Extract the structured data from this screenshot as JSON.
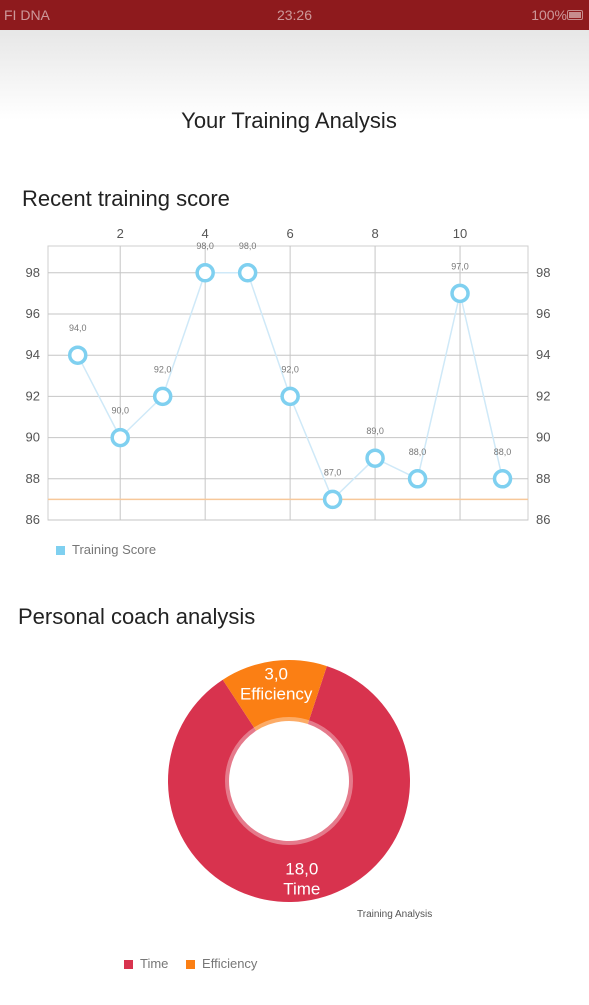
{
  "status_bar": {
    "carrier": "FI DNA",
    "time": "23:26",
    "battery": "100%"
  },
  "page_title": "Your Training Analysis",
  "line_section": {
    "title": "Recent training score"
  },
  "donut_section": {
    "title": "Personal coach analysis",
    "description": "Training Analysis"
  },
  "colors": {
    "status_bar": "#8e1a1d",
    "line": "#cfe9f8",
    "marker": "#7fd0f0",
    "limit_line": "#f7c89a",
    "time": "#d8334e",
    "efficiency": "#fb7f14"
  },
  "chart_data": [
    {
      "type": "line",
      "x": [
        1,
        2,
        3,
        4,
        5,
        6,
        7,
        8,
        9,
        10,
        11
      ],
      "x_ticks": [
        2,
        4,
        6,
        8,
        10
      ],
      "y_ticks": [
        86,
        88,
        90,
        92,
        94,
        96,
        98
      ],
      "ylim": [
        86,
        99.3
      ],
      "series": [
        {
          "name": "Training Score",
          "values": [
            94,
            90,
            92,
            98,
            98,
            92,
            87,
            89,
            88,
            97,
            88
          ],
          "labels": [
            "94,0",
            "90,0",
            "92,0",
            "98,0",
            "98,0",
            "92,0",
            "87,0",
            "89,0",
            "88,0",
            "97,0",
            "88,0"
          ]
        }
      ],
      "limit_line": 87,
      "legend": "bottom-left",
      "grid": true
    },
    {
      "type": "pie",
      "description": "Training Analysis",
      "slices": [
        {
          "name": "Time",
          "value": 18,
          "label": "18,0"
        },
        {
          "name": "Efficiency",
          "value": 3,
          "label": "3,0"
        }
      ],
      "legend": "bottom"
    }
  ]
}
